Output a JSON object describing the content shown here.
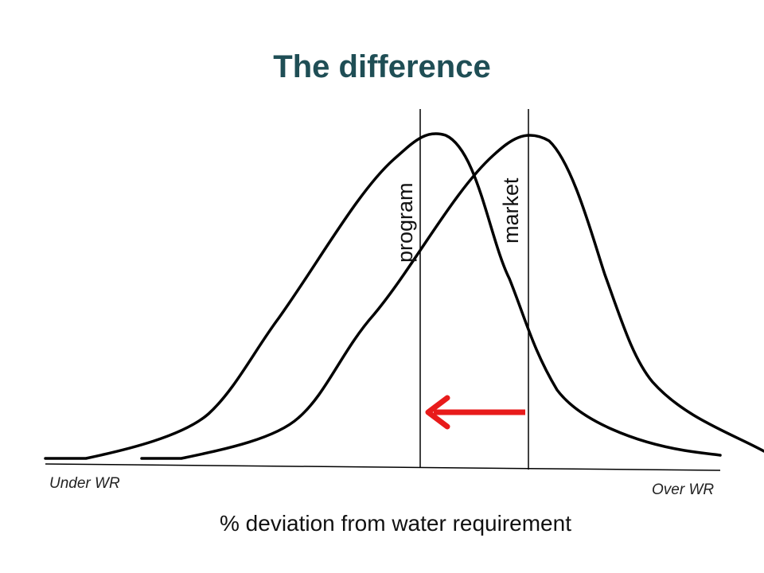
{
  "title": "The difference",
  "curves": {
    "program_label": "program",
    "market_label": "market"
  },
  "axis": {
    "left_note": "Under WR",
    "right_note": "Over WR",
    "xlabel": "% deviation from water requirement"
  },
  "colors": {
    "title": "#1f4e55",
    "curve": "#000000",
    "arrow": "#e81b1b"
  },
  "arrow": {
    "direction": "left",
    "meaning": "shift from market to program"
  }
}
